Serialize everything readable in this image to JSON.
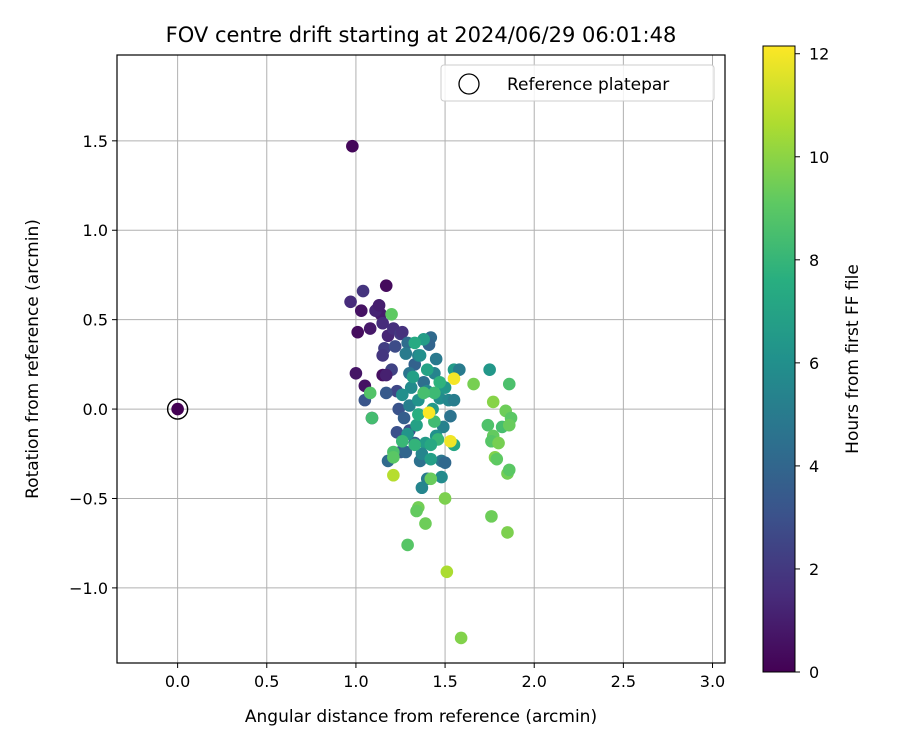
{
  "chart_data": {
    "type": "scatter",
    "title": "FOV centre drift starting at 2024/06/29 06:01:48",
    "xlabel": "Angular distance from reference (arcmin)",
    "ylabel": "Rotation from reference (arcmin)",
    "xlim": [
      -0.34,
      3.07
    ],
    "ylim": [
      -1.42,
      1.98
    ],
    "x_ticks": [
      0.0,
      0.5,
      1.0,
      1.5,
      2.0,
      2.5,
      3.0
    ],
    "y_ticks": [
      -1.0,
      -0.5,
      0.0,
      0.5,
      1.0,
      1.5
    ],
    "grid": true,
    "legend": {
      "placement": "top-right",
      "entries": [
        "Reference platepar"
      ]
    },
    "reference_point": {
      "x": 0.0,
      "y": 0.0,
      "label": "Reference platepar"
    },
    "colorbar": {
      "label": "Hours from first FF file",
      "range": [
        0,
        12.15
      ],
      "ticks": [
        0,
        2,
        4,
        6,
        8,
        10,
        12
      ],
      "colormap": "viridis"
    },
    "points": [
      {
        "x": 0.0,
        "y": 0.0,
        "c": 0.0
      },
      {
        "x": 0.98,
        "y": 1.47,
        "c": 0.2
      },
      {
        "x": 1.17,
        "y": 0.69,
        "c": 0.3
      },
      {
        "x": 1.01,
        "y": 0.43,
        "c": 0.4
      },
      {
        "x": 1.03,
        "y": 0.55,
        "c": 0.6
      },
      {
        "x": 1.08,
        "y": 0.45,
        "c": 0.8
      },
      {
        "x": 1.12,
        "y": 0.56,
        "c": 0.5
      },
      {
        "x": 1.14,
        "y": 0.53,
        "c": 0.9
      },
      {
        "x": 1.0,
        "y": 0.2,
        "c": 0.7
      },
      {
        "x": 1.05,
        "y": 0.13,
        "c": 0.6
      },
      {
        "x": 1.09,
        "y": -0.05,
        "c": 0.4
      },
      {
        "x": 1.15,
        "y": 0.19,
        "c": 0.5
      },
      {
        "x": 1.11,
        "y": 0.55,
        "c": 1.2
      },
      {
        "x": 1.13,
        "y": 0.58,
        "c": 1.0
      },
      {
        "x": 0.97,
        "y": 0.6,
        "c": 1.5
      },
      {
        "x": 1.04,
        "y": 0.66,
        "c": 1.8
      },
      {
        "x": 1.15,
        "y": 0.48,
        "c": 1.5
      },
      {
        "x": 1.18,
        "y": 0.41,
        "c": 1.3
      },
      {
        "x": 1.21,
        "y": 0.45,
        "c": 1.6
      },
      {
        "x": 1.25,
        "y": 0.42,
        "c": 2.0
      },
      {
        "x": 1.16,
        "y": 0.34,
        "c": 2.2
      },
      {
        "x": 1.15,
        "y": 0.3,
        "c": 1.9
      },
      {
        "x": 1.2,
        "y": 0.22,
        "c": 2.4
      },
      {
        "x": 1.23,
        "y": 0.1,
        "c": 2.6
      },
      {
        "x": 1.17,
        "y": 0.19,
        "c": 1.1
      },
      {
        "x": 1.26,
        "y": 0.43,
        "c": 1.7
      },
      {
        "x": 1.22,
        "y": 0.35,
        "c": 2.8
      },
      {
        "x": 1.05,
        "y": 0.05,
        "c": 3.2
      },
      {
        "x": 1.17,
        "y": 0.09,
        "c": 3.4
      },
      {
        "x": 1.24,
        "y": 0.0,
        "c": 3.1
      },
      {
        "x": 1.27,
        "y": -0.05,
        "c": 3.6
      },
      {
        "x": 1.3,
        "y": -0.12,
        "c": 2.9
      },
      {
        "x": 1.23,
        "y": -0.13,
        "c": 3.0
      },
      {
        "x": 1.25,
        "y": -0.24,
        "c": 3.5
      },
      {
        "x": 1.18,
        "y": -0.29,
        "c": 4.2
      },
      {
        "x": 1.28,
        "y": -0.24,
        "c": 4.0
      },
      {
        "x": 1.33,
        "y": -0.19,
        "c": 3.7
      },
      {
        "x": 1.36,
        "y": -0.29,
        "c": 4.5
      },
      {
        "x": 1.4,
        "y": -0.39,
        "c": 5.0
      },
      {
        "x": 1.37,
        "y": -0.44,
        "c": 5.5
      },
      {
        "x": 1.48,
        "y": -0.29,
        "c": 4.8
      },
      {
        "x": 1.42,
        "y": 0.4,
        "c": 4.2
      },
      {
        "x": 1.41,
        "y": 0.36,
        "c": 3.9
      },
      {
        "x": 1.29,
        "y": 0.37,
        "c": 4.3
      },
      {
        "x": 1.33,
        "y": 0.25,
        "c": 3.8
      },
      {
        "x": 1.3,
        "y": 0.2,
        "c": 4.7
      },
      {
        "x": 1.28,
        "y": 0.31,
        "c": 5.0
      },
      {
        "x": 1.35,
        "y": 0.3,
        "c": 5.3
      },
      {
        "x": 1.45,
        "y": 0.28,
        "c": 4.9
      },
      {
        "x": 1.44,
        "y": 0.2,
        "c": 5.4
      },
      {
        "x": 1.38,
        "y": 0.15,
        "c": 4.4
      },
      {
        "x": 1.31,
        "y": 0.12,
        "c": 5.8
      },
      {
        "x": 1.26,
        "y": 0.08,
        "c": 6.0
      },
      {
        "x": 1.3,
        "y": 0.02,
        "c": 5.2
      },
      {
        "x": 1.35,
        "y": 0.05,
        "c": 6.2
      },
      {
        "x": 1.4,
        "y": 0.1,
        "c": 5.7
      },
      {
        "x": 1.43,
        "y": 0.0,
        "c": 6.5
      },
      {
        "x": 1.47,
        "y": 0.06,
        "c": 5.9
      },
      {
        "x": 1.5,
        "y": 0.12,
        "c": 6.4
      },
      {
        "x": 1.52,
        "y": 0.05,
        "c": 5.6
      },
      {
        "x": 1.55,
        "y": 0.05,
        "c": 5.1
      },
      {
        "x": 1.53,
        "y": -0.04,
        "c": 4.6
      },
      {
        "x": 1.49,
        "y": -0.1,
        "c": 5.3
      },
      {
        "x": 1.45,
        "y": -0.15,
        "c": 6.1
      },
      {
        "x": 1.39,
        "y": -0.19,
        "c": 6.6
      },
      {
        "x": 1.34,
        "y": -0.09,
        "c": 6.9
      },
      {
        "x": 1.29,
        "y": -0.14,
        "c": 6.3
      },
      {
        "x": 1.37,
        "y": -0.25,
        "c": 5.5
      },
      {
        "x": 1.42,
        "y": -0.28,
        "c": 6.8
      },
      {
        "x": 1.48,
        "y": -0.38,
        "c": 5.8
      },
      {
        "x": 1.55,
        "y": -0.2,
        "c": 7.2
      },
      {
        "x": 1.5,
        "y": -0.3,
        "c": 4.1
      },
      {
        "x": 1.38,
        "y": 0.39,
        "c": 6.7
      },
      {
        "x": 1.33,
        "y": 0.37,
        "c": 7.4
      },
      {
        "x": 1.36,
        "y": 0.3,
        "c": 6.0
      },
      {
        "x": 1.4,
        "y": 0.22,
        "c": 7.0
      },
      {
        "x": 1.32,
        "y": 0.18,
        "c": 6.8
      },
      {
        "x": 1.55,
        "y": 0.22,
        "c": 6.6
      },
      {
        "x": 1.58,
        "y": 0.22,
        "c": 5.0
      },
      {
        "x": 1.75,
        "y": 0.22,
        "c": 6.4
      },
      {
        "x": 1.47,
        "y": 0.15,
        "c": 7.8
      },
      {
        "x": 1.44,
        "y": 0.09,
        "c": 8.2
      },
      {
        "x": 1.38,
        "y": 0.09,
        "c": 8.5
      },
      {
        "x": 1.35,
        "y": -0.03,
        "c": 7.6
      },
      {
        "x": 1.44,
        "y": -0.07,
        "c": 8.3
      },
      {
        "x": 1.46,
        "y": -0.17,
        "c": 8.0
      },
      {
        "x": 1.42,
        "y": -0.2,
        "c": 7.3
      },
      {
        "x": 1.33,
        "y": -0.2,
        "c": 7.9
      },
      {
        "x": 1.26,
        "y": -0.18,
        "c": 8.1
      },
      {
        "x": 1.21,
        "y": -0.24,
        "c": 8.6
      },
      {
        "x": 1.21,
        "y": -0.27,
        "c": 9.0
      },
      {
        "x": 1.08,
        "y": 0.09,
        "c": 8.8
      },
      {
        "x": 1.09,
        "y": -0.05,
        "c": 8.4
      },
      {
        "x": 1.2,
        "y": 0.53,
        "c": 9.1
      },
      {
        "x": 1.42,
        "y": -0.39,
        "c": 9.3
      },
      {
        "x": 1.35,
        "y": -0.55,
        "c": 9.5
      },
      {
        "x": 1.34,
        "y": -0.57,
        "c": 9.2
      },
      {
        "x": 1.39,
        "y": -0.64,
        "c": 9.4
      },
      {
        "x": 1.29,
        "y": -0.76,
        "c": 8.9
      },
      {
        "x": 1.5,
        "y": -0.5,
        "c": 9.7
      },
      {
        "x": 1.51,
        "y": -0.91,
        "c": 10.6
      },
      {
        "x": 1.59,
        "y": -1.28,
        "c": 9.8
      },
      {
        "x": 1.21,
        "y": -0.37,
        "c": 10.8
      },
      {
        "x": 1.66,
        "y": 0.14,
        "c": 9.6
      },
      {
        "x": 1.77,
        "y": 0.04,
        "c": 9.9
      },
      {
        "x": 1.84,
        "y": -0.01,
        "c": 9.4
      },
      {
        "x": 1.87,
        "y": -0.05,
        "c": 9.0
      },
      {
        "x": 1.74,
        "y": -0.09,
        "c": 8.7
      },
      {
        "x": 1.77,
        "y": -0.15,
        "c": 9.2
      },
      {
        "x": 1.76,
        "y": -0.18,
        "c": 8.9
      },
      {
        "x": 1.8,
        "y": -0.19,
        "c": 9.6
      },
      {
        "x": 1.82,
        "y": -0.1,
        "c": 8.5
      },
      {
        "x": 1.86,
        "y": -0.09,
        "c": 9.3
      },
      {
        "x": 1.78,
        "y": -0.27,
        "c": 9.8
      },
      {
        "x": 1.79,
        "y": -0.28,
        "c": 9.1
      },
      {
        "x": 1.85,
        "y": -0.36,
        "c": 9.5
      },
      {
        "x": 1.86,
        "y": -0.34,
        "c": 9.0
      },
      {
        "x": 1.86,
        "y": 0.14,
        "c": 8.6
      },
      {
        "x": 1.76,
        "y": -0.6,
        "c": 9.4
      },
      {
        "x": 1.85,
        "y": -0.69,
        "c": 9.7
      },
      {
        "x": 1.55,
        "y": 0.17,
        "c": 12.0
      },
      {
        "x": 1.41,
        "y": -0.02,
        "c": 12.1
      },
      {
        "x": 1.53,
        "y": -0.18,
        "c": 11.9
      }
    ]
  }
}
